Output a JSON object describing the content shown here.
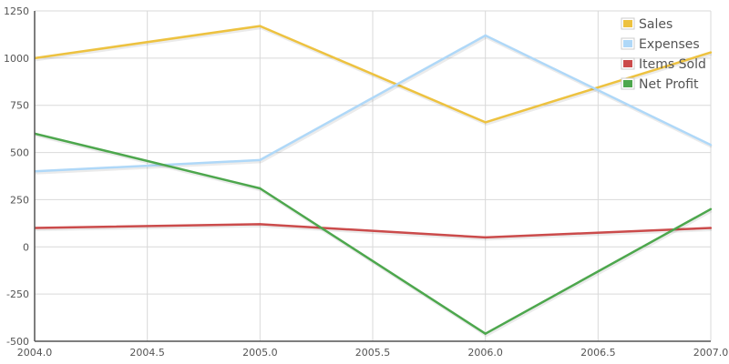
{
  "chart_data": {
    "type": "line",
    "title": "",
    "xlabel": "",
    "ylabel": "",
    "xlim": [
      2004.0,
      2007.0
    ],
    "ylim": [
      -500,
      1250
    ],
    "x_ticks": [
      "2004.0",
      "2004.5",
      "2005.0",
      "2005.5",
      "2006.0",
      "2006.5",
      "2007.0"
    ],
    "x_tick_values": [
      2004.0,
      2004.5,
      2005.0,
      2005.5,
      2006.0,
      2006.5,
      2007.0
    ],
    "y_ticks": [
      "1250",
      "1000",
      "750",
      "500",
      "250",
      "0",
      "-250",
      "-500"
    ],
    "y_tick_values": [
      1250,
      1000,
      750,
      500,
      250,
      0,
      -250,
      -500
    ],
    "grid": true,
    "legend_position": "top-right",
    "x": [
      2004,
      2005,
      2006,
      2007
    ],
    "series": [
      {
        "name": "Sales",
        "color": "#edc240",
        "values": [
          1000,
          1170,
          660,
          1030
        ]
      },
      {
        "name": "Expenses",
        "color": "#afd8f8",
        "values": [
          400,
          460,
          1120,
          540
        ]
      },
      {
        "name": "Items Sold",
        "color": "#cb4b4b",
        "values": [
          100,
          120,
          50,
          100
        ]
      },
      {
        "name": "Net Profit",
        "color": "#4da74d",
        "values": [
          600,
          310,
          -460,
          200
        ]
      }
    ]
  }
}
